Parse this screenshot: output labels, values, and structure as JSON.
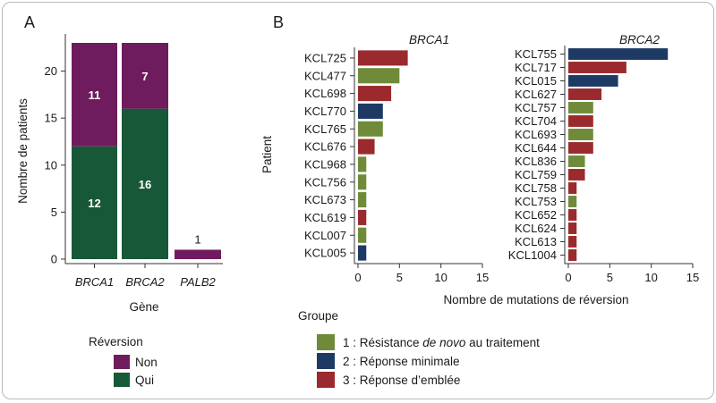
{
  "panels": {
    "a": "A",
    "b": "B"
  },
  "colors": {
    "non": "#6f1c5e",
    "qui": "#175839",
    "group1": "#6f8b3a",
    "group2": "#1e3a64",
    "group3": "#9a2a2d",
    "axis": "#333333"
  },
  "chart_data": [
    {
      "type": "bar",
      "stacked": true,
      "ylabel": "Nombre de patients",
      "xlabel": "Gène",
      "ylim": [
        0,
        23
      ],
      "yticks": [
        0,
        5,
        10,
        15,
        20
      ],
      "categories": [
        "BRCA1",
        "BRCA2",
        "PALB2"
      ],
      "series": [
        {
          "name": "Qui",
          "values": [
            12,
            16,
            0
          ]
        },
        {
          "name": "Non",
          "values": [
            11,
            7,
            1
          ]
        }
      ],
      "legend": {
        "title": "Réversion",
        "entries": [
          "Non",
          "Qui"
        ],
        "placement": "bottom-left"
      }
    },
    {
      "type": "bar",
      "orientation": "horizontal",
      "title": "BRCA1",
      "xlim": [
        0,
        15
      ],
      "xticks": [
        0,
        5,
        10,
        15
      ],
      "ylabel": "Patient",
      "bars": [
        {
          "patient": "KCL725",
          "value": 6,
          "group": 3
        },
        {
          "patient": "KCL477",
          "value": 5,
          "group": 1
        },
        {
          "patient": "KCL698",
          "value": 4,
          "group": 3
        },
        {
          "patient": "KCL770",
          "value": 3,
          "group": 2
        },
        {
          "patient": "KCL765",
          "value": 3,
          "group": 1
        },
        {
          "patient": "KCL676",
          "value": 2,
          "group": 3
        },
        {
          "patient": "KCL968",
          "value": 1,
          "group": 1
        },
        {
          "patient": "KCL756",
          "value": 1,
          "group": 1
        },
        {
          "patient": "KCL673",
          "value": 1,
          "group": 1
        },
        {
          "patient": "KCL619",
          "value": 1,
          "group": 3
        },
        {
          "patient": "KCL007",
          "value": 1,
          "group": 1
        },
        {
          "patient": "KCL005",
          "value": 1,
          "group": 2
        }
      ]
    },
    {
      "type": "bar",
      "orientation": "horizontal",
      "title": "BRCA2",
      "xlim": [
        0,
        15
      ],
      "xticks": [
        0,
        5,
        10,
        15
      ],
      "bars": [
        {
          "patient": "KCL755",
          "value": 12,
          "group": 2
        },
        {
          "patient": "KCL717",
          "value": 7,
          "group": 3
        },
        {
          "patient": "KCL015",
          "value": 6,
          "group": 2
        },
        {
          "patient": "KCL627",
          "value": 4,
          "group": 3
        },
        {
          "patient": "KCL757",
          "value": 3,
          "group": 1
        },
        {
          "patient": "KCL704",
          "value": 3,
          "group": 3
        },
        {
          "patient": "KCL693",
          "value": 3,
          "group": 1
        },
        {
          "patient": "KCL644",
          "value": 3,
          "group": 3
        },
        {
          "patient": "KCL836",
          "value": 2,
          "group": 1
        },
        {
          "patient": "KCL759",
          "value": 2,
          "group": 3
        },
        {
          "patient": "KCL758",
          "value": 1,
          "group": 3
        },
        {
          "patient": "KCL753",
          "value": 1,
          "group": 1
        },
        {
          "patient": "KCL652",
          "value": 1,
          "group": 3
        },
        {
          "patient": "KCL624",
          "value": 1,
          "group": 3
        },
        {
          "patient": "KCL613",
          "value": 1,
          "group": 3
        },
        {
          "patient": "KCL1004",
          "value": 1,
          "group": 3
        }
      ]
    }
  ],
  "shared_xlabel": "Nombre de mutations de réversion",
  "group_legend": {
    "title": "Groupe",
    "entries": [
      {
        "group": 1,
        "prefix": "1 : Résistance ",
        "italic": "de novo",
        "suffix": " au traitement"
      },
      {
        "group": 2,
        "prefix": "2 : Réponse minimale",
        "italic": "",
        "suffix": ""
      },
      {
        "group": 3,
        "prefix": "3 : Réponse d’emblée",
        "italic": "",
        "suffix": ""
      }
    ]
  }
}
